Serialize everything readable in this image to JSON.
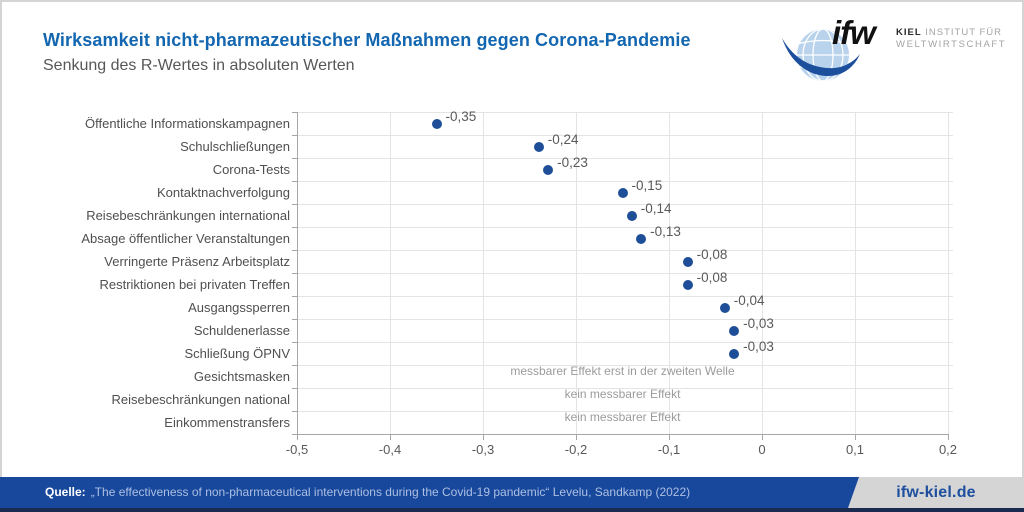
{
  "header": {
    "title": "Wirksamkeit nicht-pharmazeutischer Maßnahmen gegen Corona-Pandemie",
    "subtitle": "Senkung des R-Wertes in absoluten Werten"
  },
  "logo": {
    "wordmark": "ifw",
    "institute_bold": "KIEL",
    "institute_line1": " INSTITUT FÜR",
    "institute_line2": "WELTWIRTSCHAFT"
  },
  "chart_data": {
    "type": "scatter",
    "orientation": "horizontal-dot-plot",
    "title": "Wirksamkeit nicht-pharmazeutischer Maßnahmen gegen Corona-Pandemie",
    "subtitle": "Senkung des R-Wertes in absoluten Werten",
    "categories": [
      "Öffentliche Informationskampagnen",
      "Schulschließungen",
      "Corona-Tests",
      "Kontaktnachverfolgung",
      "Reisebeschränkungen international",
      "Absage öffentlicher Veranstaltungen",
      "Verringerte Präsenz Arbeitsplatz",
      "Restriktionen bei privaten Treffen",
      "Ausgangssperren",
      "Schuldenerlasse",
      "Schließung ÖPNV",
      "Gesichtsmasken",
      "Reisebeschränkungen national",
      "Einkommenstransfers"
    ],
    "values": [
      -0.35,
      -0.24,
      -0.23,
      -0.15,
      -0.14,
      -0.13,
      -0.08,
      -0.08,
      -0.04,
      -0.03,
      -0.03,
      null,
      null,
      null
    ],
    "point_labels": [
      "-0,35",
      "-0,24",
      "-0,23",
      "-0,15",
      "-0,14",
      "-0,13",
      "-0,08",
      "-0,08",
      "-0,04",
      "-0,03",
      "-0,03",
      null,
      null,
      null
    ],
    "annotations": [
      null,
      null,
      null,
      null,
      null,
      null,
      null,
      null,
      null,
      null,
      null,
      "messbarer Effekt erst in der zweiten Welle",
      "kein messbarer Effekt",
      "kein messbarer Effekt"
    ],
    "xlim": [
      -0.5,
      0.2
    ],
    "x_tick_values": [
      -0.5,
      -0.4,
      -0.3,
      -0.2,
      -0.1,
      0,
      0.1,
      0.2
    ],
    "x_tick_labels": [
      "-0,5",
      "-0,4",
      "-0,3",
      "-0,2",
      "-0,1",
      "0",
      "0,1",
      "0,2"
    ],
    "grid": true,
    "legend": "none",
    "dot_color": "#1e4e98",
    "xlabel": "",
    "ylabel": ""
  },
  "footer": {
    "source_label": "Quelle:",
    "source_text": "„The effectiveness of non-pharmaceutical interventions during the Covid-19 pandemic“ Levelu, Sandkamp (2022)",
    "website": "ifw-kiel.de"
  },
  "colors": {
    "title_blue": "#1366b0",
    "dot_blue": "#1e4e98",
    "footer_blue": "#17489c",
    "tab_gray": "#d5d5d5",
    "tab_text_blue": "#1d4f9e",
    "grid_gray": "#e4e4e4",
    "axis_gray": "#a6a6a6",
    "globe_blue": "#b9d3ec",
    "swoosh_blue": "#1c4f9c"
  }
}
